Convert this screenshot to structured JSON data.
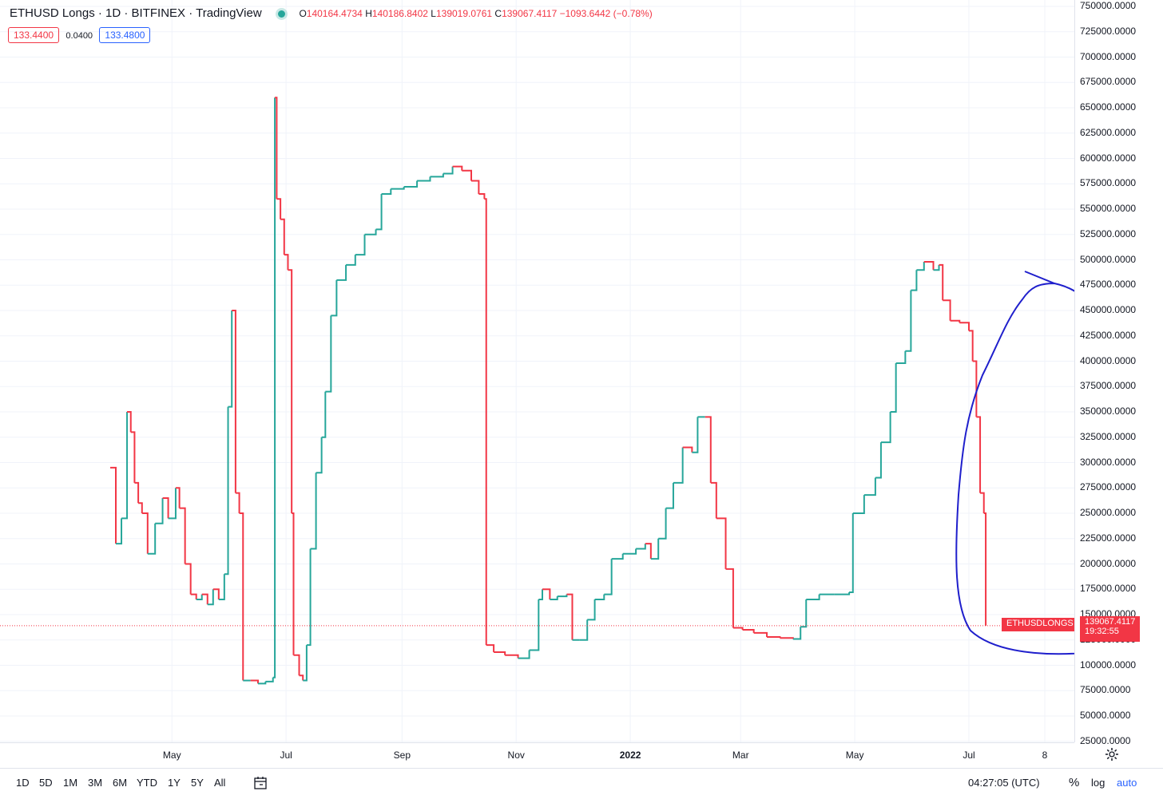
{
  "header": {
    "title": "ETHUSD Longs · 1D · BITFINEX · TradingView",
    "ohlc": {
      "open_label": "O",
      "open": "140164.4734",
      "high_label": "H",
      "high": "140186.8402",
      "low_label": "L",
      "low": "139019.0761",
      "close_label": "C",
      "close": "139067.4117",
      "change": "−1093.6442 (−0.78%)"
    },
    "bid": "133.4400",
    "spread": "0.0400",
    "ask": "133.4800"
  },
  "last_price": {
    "symbol": "ETHUSDLONGS",
    "value": "139067.4117",
    "countdown": "19:32:55"
  },
  "toolbar": {
    "ranges": [
      "1D",
      "5D",
      "1M",
      "3M",
      "6M",
      "YTD",
      "1Y",
      "5Y",
      "All"
    ],
    "clock": "04:27:05 (UTC)",
    "percent": "%",
    "log": "log",
    "auto": "auto"
  },
  "icons": {
    "settings": "gear-icon",
    "date_range": "calendar-icon",
    "live_dot": "live-status-dot"
  },
  "colors": {
    "up": "#26a69a",
    "down": "#f23645",
    "annotation": "#1f1fcc",
    "grid": "#f0f3fa"
  },
  "chart_data": {
    "type": "line",
    "title": "ETHUSD Longs",
    "xlabel": "",
    "ylabel": "",
    "ylim": [
      0,
      750000
    ],
    "grid": true,
    "y_ticks": [
      "25000.0000",
      "50000.0000",
      "75000.0000",
      "100000.0000",
      "125000.0000",
      "150000.0000",
      "175000.0000",
      "200000.0000",
      "225000.0000",
      "250000.0000",
      "275000.0000",
      "300000.0000",
      "325000.0000",
      "350000.0000",
      "375000.0000",
      "400000.0000",
      "425000.0000",
      "450000.0000",
      "475000.0000",
      "500000.0000",
      "525000.0000",
      "550000.0000",
      "575000.0000",
      "600000.0000",
      "625000.0000",
      "650000.0000",
      "675000.0000",
      "700000.0000",
      "725000.0000",
      "750000.0000"
    ],
    "x_ticks": [
      {
        "label": "May",
        "bold": false
      },
      {
        "label": "Jul",
        "bold": false
      },
      {
        "label": "Sep",
        "bold": false
      },
      {
        "label": "Nov",
        "bold": false
      },
      {
        "label": "2022",
        "bold": true
      },
      {
        "label": "Mar",
        "bold": false
      },
      {
        "label": "May",
        "bold": false
      },
      {
        "label": "Jul",
        "bold": false
      },
      {
        "label": "8",
        "bold": false
      }
    ],
    "series": [
      {
        "values": [
          [
            "2021-03-29",
            295000
          ],
          [
            "2021-04-01",
            220000
          ],
          [
            "2021-04-04",
            245000
          ],
          [
            "2021-04-07",
            350000
          ],
          [
            "2021-04-09",
            330000
          ],
          [
            "2021-04-11",
            280000
          ],
          [
            "2021-04-13",
            260000
          ],
          [
            "2021-04-15",
            250000
          ],
          [
            "2021-04-18",
            210000
          ],
          [
            "2021-04-22",
            240000
          ],
          [
            "2021-04-26",
            265000
          ],
          [
            "2021-04-29",
            245000
          ],
          [
            "2021-05-03",
            275000
          ],
          [
            "2021-05-05",
            255000
          ],
          [
            "2021-05-08",
            200000
          ],
          [
            "2021-05-11",
            170000
          ],
          [
            "2021-05-14",
            165000
          ],
          [
            "2021-05-17",
            170000
          ],
          [
            "2021-05-20",
            160000
          ],
          [
            "2021-05-23",
            175000
          ],
          [
            "2021-05-26",
            165000
          ],
          [
            "2021-05-29",
            190000
          ],
          [
            "2021-05-31",
            355000
          ],
          [
            "2021-06-02",
            450000
          ],
          [
            "2021-06-04",
            270000
          ],
          [
            "2021-06-06",
            250000
          ],
          [
            "2021-06-08",
            85000
          ],
          [
            "2021-06-12",
            85000
          ],
          [
            "2021-06-16",
            82000
          ],
          [
            "2021-06-20",
            84000
          ],
          [
            "2021-06-24",
            88000
          ],
          [
            "2021-06-25",
            660000
          ],
          [
            "2021-06-26",
            560000
          ],
          [
            "2021-06-28",
            540000
          ],
          [
            "2021-06-30",
            505000
          ],
          [
            "2021-07-02",
            490000
          ],
          [
            "2021-07-04",
            250000
          ],
          [
            "2021-07-05",
            110000
          ],
          [
            "2021-07-08",
            90000
          ],
          [
            "2021-07-10",
            85000
          ],
          [
            "2021-07-12",
            120000
          ],
          [
            "2021-07-14",
            215000
          ],
          [
            "2021-07-17",
            290000
          ],
          [
            "2021-07-20",
            325000
          ],
          [
            "2021-07-22",
            370000
          ],
          [
            "2021-07-25",
            445000
          ],
          [
            "2021-07-28",
            480000
          ],
          [
            "2021-08-02",
            495000
          ],
          [
            "2021-08-07",
            505000
          ],
          [
            "2021-08-12",
            525000
          ],
          [
            "2021-08-18",
            530000
          ],
          [
            "2021-08-21",
            565000
          ],
          [
            "2021-08-26",
            570000
          ],
          [
            "2021-09-02",
            572000
          ],
          [
            "2021-09-09",
            578000
          ],
          [
            "2021-09-16",
            582000
          ],
          [
            "2021-09-23",
            585000
          ],
          [
            "2021-09-28",
            592000
          ],
          [
            "2021-10-03",
            588000
          ],
          [
            "2021-10-08",
            578000
          ],
          [
            "2021-10-12",
            565000
          ],
          [
            "2021-10-15",
            560000
          ],
          [
            "2021-10-16",
            120000
          ],
          [
            "2021-10-20",
            113000
          ],
          [
            "2021-10-26",
            110000
          ],
          [
            "2021-11-02",
            107000
          ],
          [
            "2021-11-08",
            115000
          ],
          [
            "2021-11-13",
            165000
          ],
          [
            "2021-11-15",
            175000
          ],
          [
            "2021-11-19",
            165000
          ],
          [
            "2021-11-23",
            168000
          ],
          [
            "2021-11-28",
            170000
          ],
          [
            "2021-12-01",
            125000
          ],
          [
            "2021-12-05",
            125000
          ],
          [
            "2021-12-09",
            145000
          ],
          [
            "2021-12-13",
            165000
          ],
          [
            "2021-12-18",
            170000
          ],
          [
            "2021-12-22",
            205000
          ],
          [
            "2021-12-28",
            210000
          ],
          [
            "2022-01-04",
            215000
          ],
          [
            "2022-01-09",
            220000
          ],
          [
            "2022-01-12",
            205000
          ],
          [
            "2022-01-16",
            225000
          ],
          [
            "2022-01-20",
            255000
          ],
          [
            "2022-01-24",
            280000
          ],
          [
            "2022-01-29",
            315000
          ],
          [
            "2022-02-03",
            310000
          ],
          [
            "2022-02-06",
            345000
          ],
          [
            "2022-02-10",
            345000
          ],
          [
            "2022-02-13",
            280000
          ],
          [
            "2022-02-16",
            245000
          ],
          [
            "2022-02-21",
            195000
          ],
          [
            "2022-02-25",
            137000
          ],
          [
            "2022-03-02",
            135000
          ],
          [
            "2022-03-08",
            132000
          ],
          [
            "2022-03-15",
            128000
          ],
          [
            "2022-03-22",
            127000
          ],
          [
            "2022-03-29",
            126000
          ],
          [
            "2022-04-02",
            138000
          ],
          [
            "2022-04-05",
            165000
          ],
          [
            "2022-04-12",
            170000
          ],
          [
            "2022-04-20",
            170000
          ],
          [
            "2022-04-28",
            172000
          ],
          [
            "2022-04-30",
            250000
          ],
          [
            "2022-05-06",
            268000
          ],
          [
            "2022-05-12",
            285000
          ],
          [
            "2022-05-15",
            320000
          ],
          [
            "2022-05-20",
            350000
          ],
          [
            "2022-05-23",
            398000
          ],
          [
            "2022-05-28",
            410000
          ],
          [
            "2022-05-31",
            470000
          ],
          [
            "2022-06-03",
            490000
          ],
          [
            "2022-06-07",
            498000
          ],
          [
            "2022-06-12",
            490000
          ],
          [
            "2022-06-15",
            495000
          ],
          [
            "2022-06-17",
            460000
          ],
          [
            "2022-06-21",
            440000
          ],
          [
            "2022-06-26",
            438000
          ],
          [
            "2022-07-01",
            430000
          ],
          [
            "2022-07-03",
            400000
          ],
          [
            "2022-07-05",
            345000
          ],
          [
            "2022-07-07",
            270000
          ],
          [
            "2022-07-09",
            250000
          ],
          [
            "2022-07-10",
            139067
          ]
        ]
      }
    ]
  }
}
